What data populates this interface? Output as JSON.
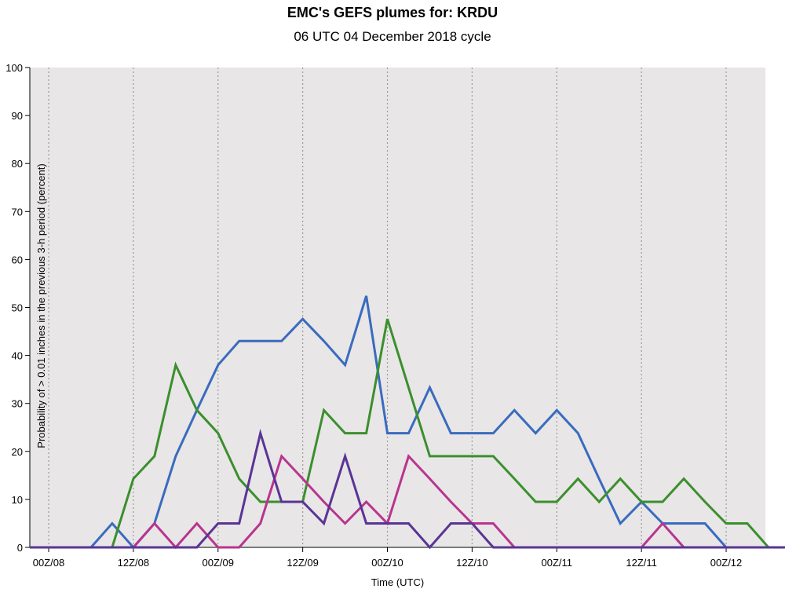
{
  "chart_data": {
    "type": "line",
    "title": "EMC's GEFS plumes for: KRDU",
    "subtitle": "06 UTC 04 December 2018 cycle",
    "xlabel": "Time (UTC)",
    "ylabel": "Probability of > 0.01 inches in the previous 3-h period (percent)",
    "x_tick_labels": [
      "00Z/08",
      "12Z/08",
      "00Z/09",
      "12Z/09",
      "00Z/10",
      "12Z/10",
      "00Z/11",
      "12Z/11",
      "00Z/12"
    ],
    "x_unit": "hours after 00Z/08",
    "xlim": [
      0,
      108
    ],
    "ylim": [
      0,
      100
    ],
    "y_ticks": [
      0,
      10,
      20,
      30,
      40,
      50,
      60,
      70,
      80,
      90,
      100
    ],
    "grid": "vertical dotted at each x tick label",
    "x": [
      -3,
      0,
      3,
      6,
      9,
      12,
      15,
      18,
      21,
      24,
      27,
      30,
      33,
      36,
      39,
      42,
      45,
      48,
      51,
      54,
      57,
      60,
      63,
      66,
      69,
      72,
      75,
      78,
      81,
      84,
      87,
      90,
      93,
      96,
      99,
      102,
      105,
      108
    ],
    "series": [
      {
        "color": "#3a6bbf",
        "values": [
          0,
          0,
          0,
          0,
          5,
          0,
          5,
          19,
          28.6,
          38,
          43,
          43,
          43,
          47.6,
          43,
          38,
          52.4,
          23.8,
          23.8,
          33.3,
          23.8,
          23.8,
          23.8,
          28.6,
          23.8,
          28.6,
          23.8,
          14.3,
          5,
          9.5,
          5,
          5,
          5,
          0,
          0,
          0,
          0,
          0
        ]
      },
      {
        "color": "#3b8f2e",
        "values": [
          0,
          0,
          0,
          0,
          0,
          14.3,
          19,
          38,
          28.6,
          23.8,
          14.3,
          9.5,
          9.5,
          9.5,
          28.6,
          23.8,
          23.8,
          47.6,
          33.3,
          19,
          19,
          19,
          19,
          14.3,
          9.5,
          9.5,
          14.3,
          9.5,
          14.3,
          9.5,
          9.5,
          14.3,
          9.5,
          5,
          5,
          0,
          0,
          0
        ]
      },
      {
        "color": "#b8358f",
        "values": [
          0,
          0,
          0,
          0,
          0,
          0,
          5,
          0,
          5,
          0,
          0,
          5,
          19,
          14.3,
          9.5,
          5,
          9.5,
          5,
          19,
          14.3,
          9.5,
          5,
          5,
          0,
          0,
          0,
          0,
          0,
          0,
          0,
          5,
          0,
          0,
          0,
          0,
          0,
          0,
          0
        ]
      },
      {
        "color": "#5a3496",
        "values": [
          0,
          0,
          0,
          0,
          0,
          0,
          0,
          0,
          0,
          5,
          5,
          23.8,
          9.5,
          9.5,
          5,
          19,
          5,
          5,
          5,
          0,
          5,
          5,
          0,
          0,
          0,
          0,
          0,
          0,
          0,
          0,
          0,
          0,
          0,
          0,
          0,
          0,
          0,
          0
        ]
      }
    ]
  }
}
